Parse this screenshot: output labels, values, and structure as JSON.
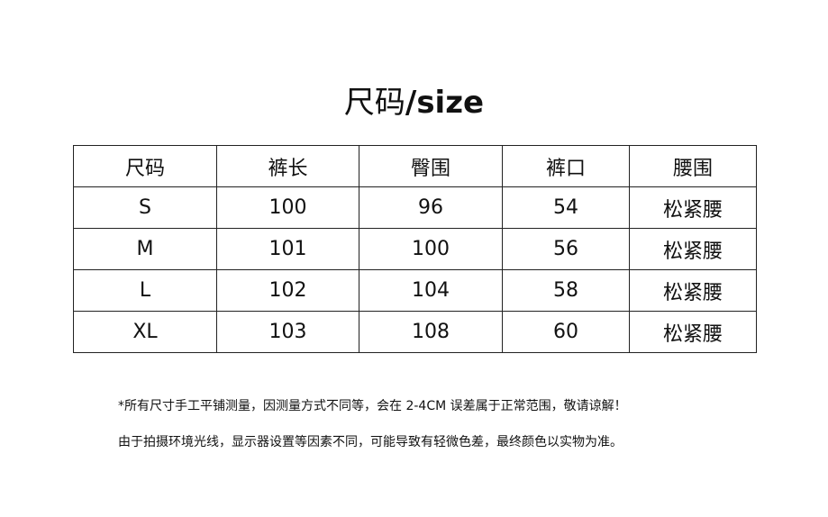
{
  "title": {
    "cn": "尺码",
    "en": "/size"
  },
  "table": {
    "headers": [
      "尺码",
      "裤长",
      "臀围",
      "裤口",
      "腰围"
    ],
    "rows": [
      [
        "S",
        "100",
        "96",
        "54",
        "松紧腰"
      ],
      [
        "M",
        "101",
        "100",
        "56",
        "松紧腰"
      ],
      [
        "L",
        "102",
        "104",
        "58",
        "松紧腰"
      ],
      [
        "XL",
        "103",
        "108",
        "60",
        "松紧腰"
      ]
    ]
  },
  "notes": [
    "*所有尺寸手工平铺测量，因测量方式不同等，会在 2-4CM 误差属于正常范围，敬请谅解！",
    "由于拍摄环境光线，显示器设置等因素不同，可能导致有轻微色差，最终颜色以实物为准。"
  ]
}
